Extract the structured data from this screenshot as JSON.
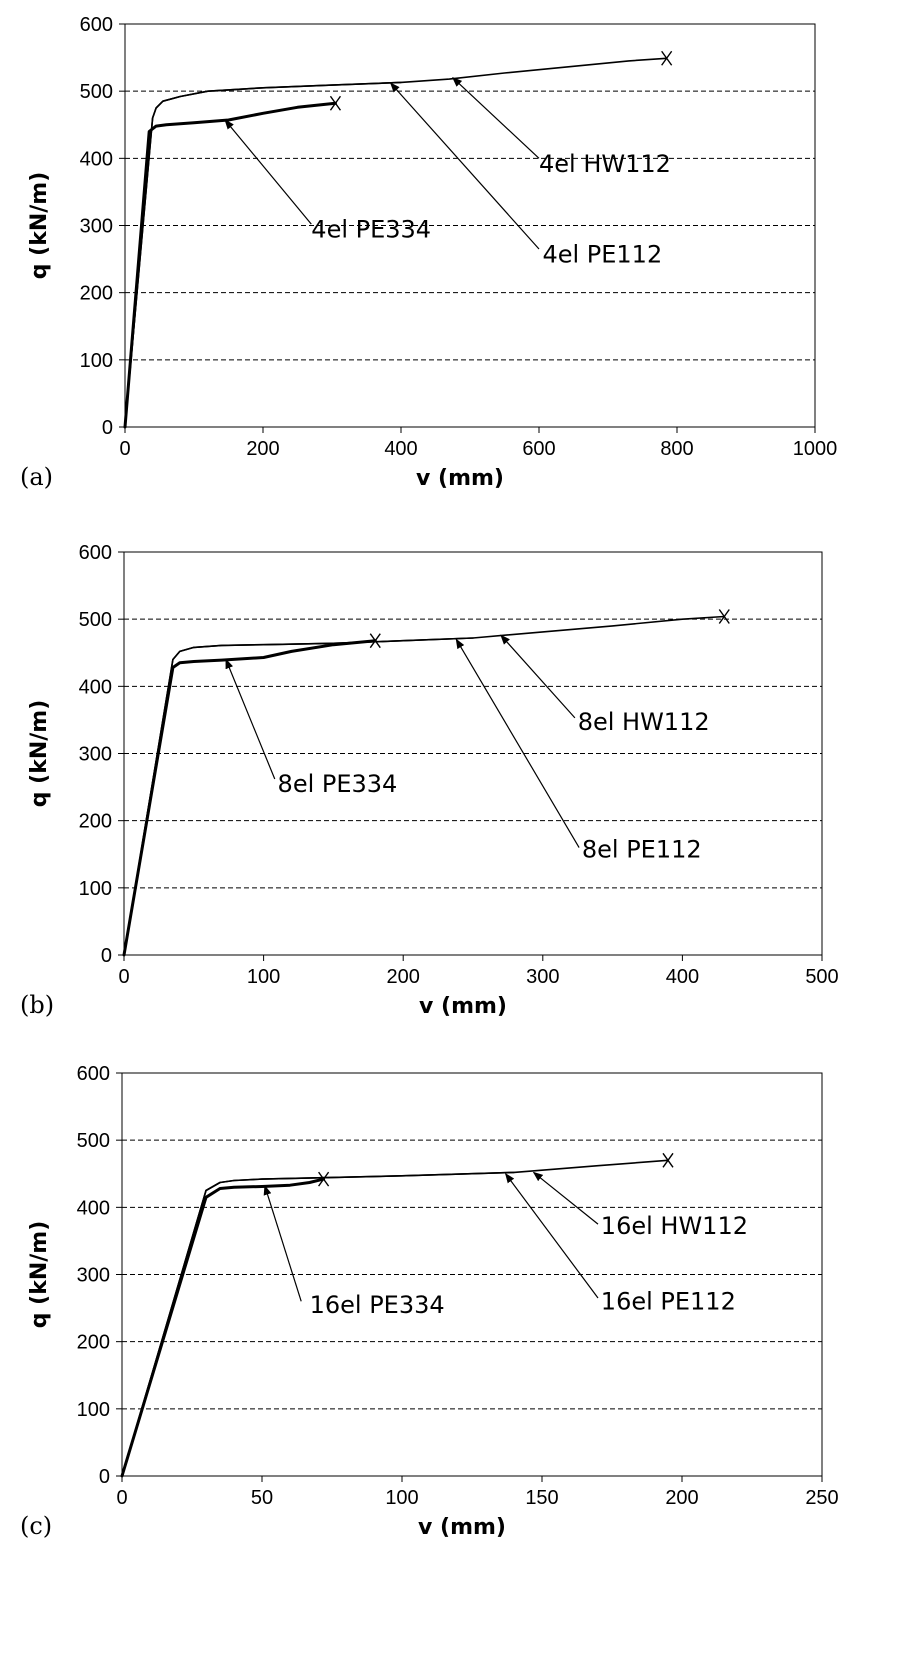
{
  "chart_data": [
    {
      "type": "line",
      "panel_label": "(a)",
      "xlabel": "v (mm)",
      "ylabel": "q (kN/m)",
      "xlim": [
        0,
        1000
      ],
      "ylim": [
        0,
        600
      ],
      "x_ticks": [
        "0",
        "200",
        "400",
        "600",
        "800",
        "1000"
      ],
      "y_ticks": [
        "0",
        "100",
        "200",
        "300",
        "400",
        "500",
        "600"
      ],
      "grid": "horizontal dashed",
      "series": [
        {
          "name": "4el HW112",
          "weight": "thin",
          "x": [
            0,
            40,
            45,
            55,
            80,
            120,
            200,
            300,
            400,
            470,
            550,
            650,
            730,
            785
          ],
          "y": [
            0,
            460,
            475,
            485,
            492,
            500,
            505,
            509,
            513,
            518,
            527,
            537,
            545,
            549
          ],
          "end_marker": "x"
        },
        {
          "name": "4el PE112",
          "weight": "thin",
          "x": [
            0,
            40,
            45,
            55,
            80,
            120,
            200,
            300,
            400
          ],
          "y": [
            0,
            460,
            475,
            485,
            492,
            500,
            505,
            509,
            513
          ],
          "end_marker": "none"
        },
        {
          "name": "4el PE334",
          "weight": "thick",
          "x": [
            0,
            35,
            45,
            60,
            100,
            150,
            200,
            250,
            305
          ],
          "y": [
            0,
            440,
            448,
            450,
            453,
            457,
            467,
            476,
            482
          ],
          "end_marker": "x"
        }
      ],
      "annotations": [
        {
          "text": "4el HW112",
          "text_x": 600,
          "text_y": 380,
          "arrow_from": [
            600,
            400
          ],
          "arrow_to": [
            475,
            520
          ]
        },
        {
          "text": "4el PE112",
          "text_x": 605,
          "text_y": 245,
          "arrow_from": [
            600,
            265
          ],
          "arrow_to": [
            385,
            512
          ]
        },
        {
          "text": "4el PE334",
          "text_x": 270,
          "text_y": 282,
          "arrow_from": [
            270,
            302
          ],
          "arrow_to": [
            145,
            457
          ]
        }
      ]
    },
    {
      "type": "line",
      "panel_label": "(b)",
      "xlabel": "v (mm)",
      "ylabel": "q (kN/m)",
      "xlim": [
        0,
        500
      ],
      "ylim": [
        0,
        600
      ],
      "x_ticks": [
        "0",
        "100",
        "200",
        "300",
        "400",
        "500"
      ],
      "y_ticks": [
        "0",
        "100",
        "200",
        "300",
        "400",
        "500",
        "600"
      ],
      "grid": "horizontal dashed",
      "series": [
        {
          "name": "8el HW112",
          "weight": "thin",
          "x": [
            0,
            35,
            40,
            50,
            70,
            100,
            150,
            200,
            250,
            300,
            350,
            400,
            430
          ],
          "y": [
            0,
            440,
            452,
            458,
            461,
            462,
            464,
            468,
            472,
            481,
            490,
            500,
            504
          ],
          "end_marker": "x"
        },
        {
          "name": "8el PE112",
          "weight": "thin",
          "x": [
            0,
            35,
            40,
            50,
            70,
            100,
            150,
            200,
            250
          ],
          "y": [
            0,
            440,
            452,
            458,
            461,
            462,
            464,
            468,
            472
          ],
          "end_marker": "none"
        },
        {
          "name": "8el PE334",
          "weight": "thick",
          "x": [
            0,
            35,
            40,
            50,
            70,
            100,
            120,
            150,
            180
          ],
          "y": [
            0,
            428,
            435,
            437,
            439,
            443,
            452,
            462,
            468
          ],
          "end_marker": "x"
        }
      ],
      "annotations": [
        {
          "text": "8el HW112",
          "text_x": 325,
          "text_y": 335,
          "arrow_from": [
            323,
            353
          ],
          "arrow_to": [
            270,
            476
          ]
        },
        {
          "text": "8el PE112",
          "text_x": 328,
          "text_y": 145,
          "arrow_from": [
            326,
            160
          ],
          "arrow_to": [
            238,
            470
          ]
        },
        {
          "text": "8el PE334",
          "text_x": 110,
          "text_y": 243,
          "arrow_from": [
            108,
            262
          ],
          "arrow_to": [
            73,
            440
          ]
        }
      ]
    },
    {
      "type": "line",
      "panel_label": "(c)",
      "xlabel": "v (mm)",
      "ylabel": "q (kN/m)",
      "xlim": [
        0,
        250
      ],
      "ylim": [
        0,
        600
      ],
      "x_ticks": [
        "0",
        "50",
        "100",
        "150",
        "200",
        "250"
      ],
      "y_ticks": [
        "0",
        "100",
        "200",
        "300",
        "400",
        "500",
        "600"
      ],
      "grid": "horizontal dashed",
      "series": [
        {
          "name": "16el HW112",
          "weight": "thin",
          "x": [
            0,
            30,
            35,
            40,
            50,
            70,
            100,
            140,
            170,
            195
          ],
          "y": [
            0,
            425,
            437,
            440,
            442,
            444,
            447,
            452,
            462,
            470
          ],
          "end_marker": "x"
        },
        {
          "name": "16el PE112",
          "weight": "thin",
          "x": [
            0,
            30,
            35,
            40,
            50,
            70,
            100,
            140
          ],
          "y": [
            0,
            425,
            437,
            440,
            442,
            444,
            447,
            452
          ],
          "end_marker": "none"
        },
        {
          "name": "16el PE334",
          "weight": "thick",
          "x": [
            0,
            30,
            35,
            40,
            50,
            60,
            67,
            72
          ],
          "y": [
            0,
            415,
            428,
            430,
            431,
            433,
            437,
            442
          ],
          "end_marker": "x"
        }
      ],
      "annotations": [
        {
          "text": "16el HW112",
          "text_x": 171,
          "text_y": 360,
          "arrow_from": [
            170,
            375
          ],
          "arrow_to": [
            147,
            452
          ]
        },
        {
          "text": "16el PE112",
          "text_x": 171,
          "text_y": 248,
          "arrow_from": [
            170,
            265
          ],
          "arrow_to": [
            137,
            450
          ]
        },
        {
          "text": "16el PE334",
          "text_x": 67,
          "text_y": 243,
          "arrow_from": [
            64,
            260
          ],
          "arrow_to": [
            51,
            432
          ]
        }
      ]
    }
  ]
}
